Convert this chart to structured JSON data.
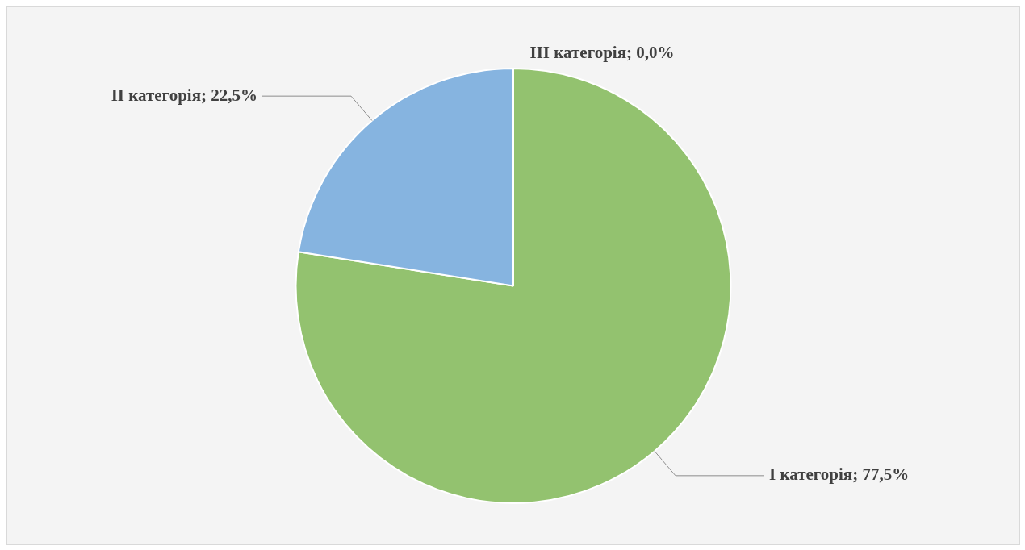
{
  "chart_data": {
    "type": "pie",
    "categories": [
      "I категорія",
      "II категорія",
      "III категорія"
    ],
    "values": [
      77.5,
      22.5,
      0.0
    ],
    "colors": [
      "#93c26f",
      "#86b4e0",
      "#a5a5a5"
    ],
    "value_labels": [
      "; 77,5%",
      "; 22,5%",
      "; 0,0%"
    ],
    "legend": false
  }
}
